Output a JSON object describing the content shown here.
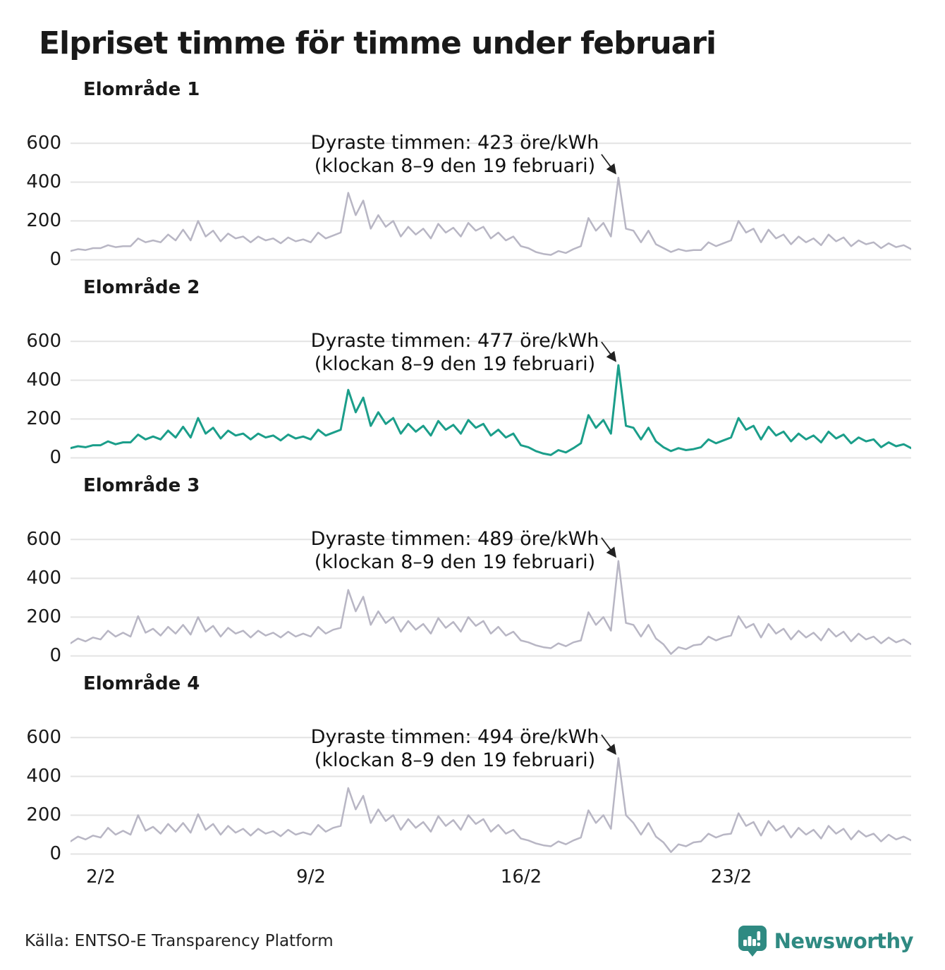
{
  "title": "Elpriset timme för timme under februari",
  "axes": {
    "y_ticks": [
      "600",
      "400",
      "200",
      "0"
    ],
    "x_ticks": [
      "2/2",
      "9/2",
      "16/2",
      "23/2"
    ]
  },
  "panels": [
    {
      "label": "Elområde 1",
      "annotation": {
        "line1": "Dyraste timmen: 423 öre/kWh",
        "line2": "(klockan 8–9 den 19 februari)"
      }
    },
    {
      "label": "Elområde 2",
      "annotation": {
        "line1": "Dyraste timmen: 477 öre/kWh",
        "line2": "(klockan 8–9 den 19 februari)"
      }
    },
    {
      "label": "Elområde 3",
      "annotation": {
        "line1": "Dyraste timmen: 489 öre/kWh",
        "line2": "(klockan 8–9 den 19 februari)"
      }
    },
    {
      "label": "Elområde 4",
      "annotation": {
        "line1": "Dyraste timmen: 494 öre/kWh",
        "line2": "(klockan 8–9 den 19 februari)"
      }
    }
  ],
  "footer": {
    "source": "Källa: ENTSO-E Transparency Platform",
    "brand": "Newsworthy",
    "brand_color": "#2f8a82"
  },
  "chart_data": [
    {
      "type": "line",
      "title": "Elområde 1",
      "unit": "öre/kWh",
      "x_unit": "day of February",
      "x_start": 1,
      "x_step": 0.25,
      "x_range": [
        1,
        29
      ],
      "ylim": [
        0,
        650
      ],
      "y_gridlines": [
        0,
        200,
        400,
        600
      ],
      "x_tick_days": [
        2,
        9,
        16,
        23
      ],
      "legend": "none",
      "grid": "horizontal",
      "color": "#b8b6c4",
      "peak": {
        "day": 19.25,
        "value": 423,
        "label": "Dyraste timmen: 423 öre/kWh (klockan 8–9 den 19 februari)"
      },
      "values": [
        45,
        55,
        50,
        60,
        60,
        75,
        65,
        70,
        70,
        110,
        90,
        100,
        90,
        130,
        100,
        155,
        100,
        200,
        120,
        150,
        95,
        135,
        110,
        120,
        90,
        120,
        100,
        110,
        85,
        115,
        95,
        105,
        90,
        140,
        110,
        125,
        140,
        345,
        230,
        305,
        160,
        230,
        170,
        200,
        120,
        170,
        130,
        160,
        110,
        185,
        140,
        165,
        120,
        190,
        150,
        170,
        110,
        140,
        100,
        120,
        70,
        60,
        40,
        30,
        25,
        45,
        35,
        55,
        70,
        215,
        150,
        190,
        120,
        423,
        160,
        150,
        90,
        150,
        80,
        60,
        40,
        55,
        45,
        50,
        50,
        90,
        70,
        85,
        100,
        200,
        140,
        160,
        90,
        155,
        110,
        130,
        80,
        120,
        90,
        110,
        75,
        130,
        95,
        115,
        70,
        100,
        80,
        90,
        60,
        85,
        65,
        75,
        55
      ]
    },
    {
      "type": "line",
      "title": "Elområde 2",
      "unit": "öre/kWh",
      "x_unit": "day of February",
      "x_start": 1,
      "x_step": 0.25,
      "x_range": [
        1,
        29
      ],
      "ylim": [
        0,
        650
      ],
      "y_gridlines": [
        0,
        200,
        400,
        600
      ],
      "x_tick_days": [
        2,
        9,
        16,
        23
      ],
      "legend": "none",
      "grid": "horizontal",
      "color": "#1b9e8a",
      "peak": {
        "day": 19.25,
        "value": 477,
        "label": "Dyraste timmen: 477 öre/kWh (klockan 8–9 den 19 februari)"
      },
      "values": [
        50,
        60,
        55,
        65,
        65,
        85,
        70,
        80,
        80,
        120,
        95,
        110,
        95,
        140,
        105,
        160,
        105,
        205,
        125,
        155,
        100,
        140,
        115,
        125,
        95,
        125,
        105,
        115,
        90,
        120,
        100,
        110,
        95,
        145,
        115,
        130,
        145,
        350,
        235,
        310,
        165,
        235,
        175,
        205,
        125,
        175,
        135,
        165,
        115,
        190,
        145,
        170,
        125,
        195,
        155,
        175,
        115,
        145,
        105,
        125,
        65,
        55,
        35,
        22,
        15,
        40,
        28,
        50,
        75,
        220,
        155,
        195,
        125,
        477,
        165,
        155,
        95,
        155,
        85,
        55,
        35,
        50,
        40,
        45,
        55,
        95,
        75,
        90,
        105,
        205,
        145,
        165,
        95,
        160,
        115,
        135,
        85,
        125,
        95,
        115,
        80,
        135,
        100,
        120,
        75,
        105,
        85,
        95,
        55,
        80,
        60,
        70,
        50
      ]
    },
    {
      "type": "line",
      "title": "Elområde 3",
      "unit": "öre/kWh",
      "x_unit": "day of February",
      "x_start": 1,
      "x_step": 0.25,
      "x_range": [
        1,
        29
      ],
      "ylim": [
        0,
        650
      ],
      "y_gridlines": [
        0,
        200,
        400,
        600
      ],
      "x_tick_days": [
        2,
        9,
        16,
        23
      ],
      "legend": "none",
      "grid": "horizontal",
      "color": "#b8b6c4",
      "peak": {
        "day": 19.25,
        "value": 489,
        "label": "Dyraste timmen: 489 öre/kWh (klockan 8–9 den 19 februari)"
      },
      "values": [
        65,
        90,
        75,
        95,
        85,
        130,
        100,
        120,
        100,
        205,
        120,
        140,
        105,
        150,
        115,
        160,
        110,
        200,
        125,
        155,
        100,
        145,
        115,
        130,
        95,
        130,
        105,
        120,
        95,
        125,
        100,
        115,
        100,
        150,
        115,
        135,
        145,
        340,
        230,
        305,
        160,
        230,
        170,
        200,
        125,
        180,
        135,
        165,
        115,
        195,
        145,
        175,
        125,
        200,
        155,
        180,
        115,
        150,
        105,
        125,
        80,
        70,
        55,
        45,
        40,
        65,
        50,
        70,
        80,
        225,
        160,
        200,
        130,
        489,
        170,
        160,
        100,
        160,
        90,
        60,
        10,
        45,
        35,
        55,
        60,
        100,
        80,
        95,
        105,
        205,
        145,
        165,
        95,
        165,
        115,
        140,
        85,
        130,
        95,
        120,
        80,
        140,
        100,
        125,
        75,
        115,
        85,
        100,
        65,
        95,
        70,
        85,
        60
      ]
    },
    {
      "type": "line",
      "title": "Elområde 4",
      "unit": "öre/kWh",
      "x_unit": "day of February",
      "x_start": 1,
      "x_step": 0.25,
      "x_range": [
        1,
        29
      ],
      "ylim": [
        0,
        650
      ],
      "y_gridlines": [
        0,
        200,
        400,
        600
      ],
      "x_tick_days": [
        2,
        9,
        16,
        23
      ],
      "legend": "none",
      "grid": "horizontal",
      "color": "#b8b6c4",
      "peak": {
        "day": 19.25,
        "value": 494,
        "label": "Dyraste timmen: 494 öre/kWh (klockan 8–9 den 19 februari)"
      },
      "values": [
        65,
        90,
        75,
        95,
        85,
        135,
        100,
        120,
        100,
        200,
        120,
        140,
        105,
        155,
        115,
        160,
        110,
        205,
        125,
        155,
        100,
        145,
        110,
        130,
        95,
        130,
        105,
        118,
        92,
        125,
        100,
        112,
        100,
        150,
        115,
        135,
        145,
        340,
        230,
        300,
        160,
        230,
        170,
        200,
        125,
        180,
        135,
        165,
        115,
        195,
        145,
        175,
        125,
        200,
        155,
        180,
        115,
        150,
        105,
        125,
        80,
        70,
        55,
        45,
        40,
        65,
        50,
        70,
        85,
        225,
        160,
        200,
        130,
        494,
        200,
        160,
        100,
        160,
        90,
        60,
        10,
        50,
        40,
        60,
        65,
        105,
        85,
        100,
        105,
        210,
        145,
        165,
        95,
        170,
        120,
        145,
        85,
        135,
        100,
        125,
        80,
        145,
        105,
        130,
        75,
        120,
        90,
        105,
        65,
        100,
        75,
        90,
        70
      ]
    }
  ]
}
